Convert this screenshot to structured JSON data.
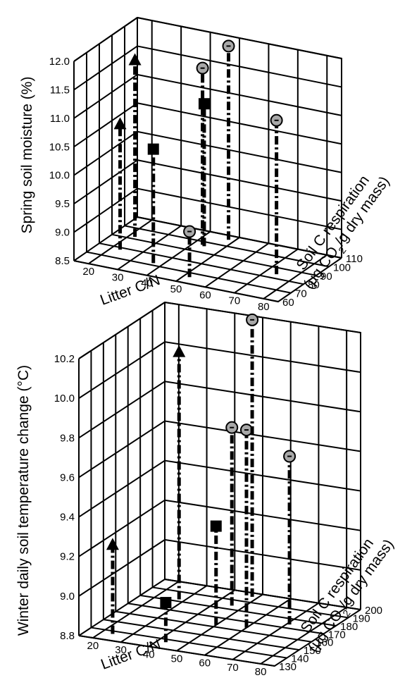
{
  "colors": {
    "ink": "#000000",
    "circle_fill": "#a8a8a8",
    "background": "#ffffff"
  },
  "marker_legend": {
    "circle": "circle-marker-with-minus",
    "triangle": "triangle-marker",
    "square": "square-marker"
  },
  "chart_data": [
    {
      "type": "scatter",
      "title": "",
      "xlabel": "Litter C/N",
      "ylabel": "Spring soil moisture (%)",
      "zlabel": "Soil C respiration",
      "zlabel_units": [
        "(µg CO",
        "2",
        "/g dry mass)"
      ],
      "x_ticks": [
        "20",
        "30",
        "40",
        "50",
        "60",
        "70",
        "80"
      ],
      "y_ticks": [
        "8.5",
        "9.0",
        "9.5",
        "10.0",
        "10.5",
        "11.0",
        "11.5",
        "12.0"
      ],
      "z_ticks": [
        "60",
        "70",
        "80",
        "90",
        "100",
        "110"
      ],
      "xlim": [
        15,
        85
      ],
      "ylim": [
        8.5,
        12.0
      ],
      "zlim": [
        60,
        110
      ],
      "grid": true,
      "points": [
        {
          "marker": "triangle",
          "x": 23,
          "y": 10.7,
          "z": 78
        },
        {
          "marker": "triangle",
          "x": 22,
          "y": 11.6,
          "z": 92
        },
        {
          "marker": "square",
          "x": 37,
          "y": 10.5,
          "z": 72
        },
        {
          "marker": "square",
          "x": 44,
          "y": 11.0,
          "z": 96
        },
        {
          "marker": "circle",
          "x": 52,
          "y": 9.3,
          "z": 66
        },
        {
          "marker": "circle",
          "x": 43,
          "y": 11.6,
          "z": 97
        },
        {
          "marker": "circle",
          "x": 48,
          "y": 11.9,
          "z": 106
        },
        {
          "marker": "circle",
          "x": 74,
          "y": 11.2,
          "z": 84
        }
      ]
    },
    {
      "type": "scatter",
      "title": "",
      "xlabel": "Litter C/N",
      "ylabel": "Winter daily soil temperature change (°C)",
      "zlabel": "Soil C respiration",
      "zlabel_units": [
        "(µg CO",
        "2",
        "/g dry mass)"
      ],
      "x_ticks": [
        "20",
        "30",
        "40",
        "50",
        "60",
        "70",
        "80"
      ],
      "y_ticks": [
        "8.8",
        "9.0",
        "9.2",
        "9.4",
        "9.6",
        "9.8",
        "10.0",
        "10.2"
      ],
      "z_ticks": [
        "130",
        "140",
        "150",
        "160",
        "170",
        "180",
        "190",
        "200"
      ],
      "xlim": [
        15,
        85
      ],
      "ylim": [
        8.8,
        10.2
      ],
      "zlim": [
        130,
        200
      ],
      "grid": true,
      "points": [
        {
          "marker": "triangle",
          "x": 24,
          "y": 9.25,
          "z": 137
        },
        {
          "marker": "triangle",
          "x": 28,
          "y": 10.05,
          "z": 182
        },
        {
          "marker": "square",
          "x": 43,
          "y": 9.0,
          "z": 137
        },
        {
          "marker": "square",
          "x": 50,
          "y": 9.3,
          "z": 162
        },
        {
          "marker": "circle",
          "x": 46,
          "y": 9.7,
          "z": 184
        },
        {
          "marker": "circle",
          "x": 60,
          "y": 9.8,
          "z": 164
        },
        {
          "marker": "circle",
          "x": 48,
          "y": 10.2,
          "z": 196
        },
        {
          "marker": "circle",
          "x": 71,
          "y": 9.65,
          "z": 174
        }
      ]
    }
  ]
}
